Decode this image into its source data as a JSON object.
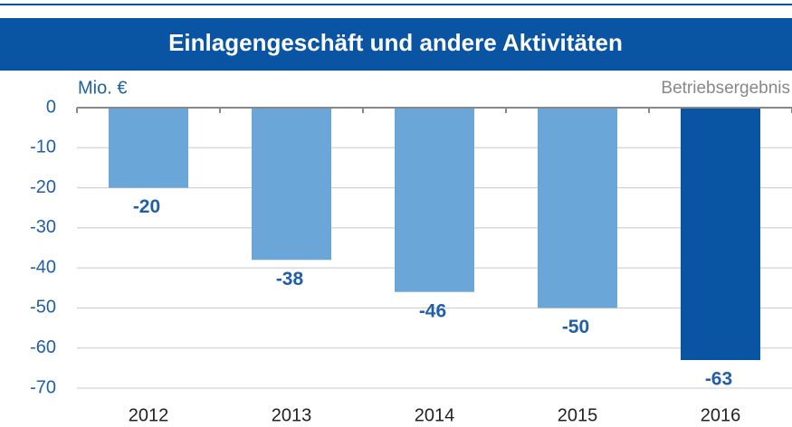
{
  "chart_data": {
    "type": "bar",
    "title": "Einlagengeschäft und andere Aktivitäten",
    "unit_label": "Mio. €",
    "annotation": "Betriebsergebnis",
    "categories": [
      "2012",
      "2013",
      "2014",
      "2015",
      "2016"
    ],
    "values": [
      -20,
      -38,
      -46,
      -50,
      -63
    ],
    "colors": [
      "#6aa6d8",
      "#6aa6d8",
      "#6aa6d8",
      "#6aa6d8",
      "#0a55a3"
    ],
    "ylim": [
      -70,
      0
    ],
    "yticks": [
      0,
      -10,
      -20,
      -30,
      -40,
      -50,
      -60,
      -70
    ],
    "grid": true
  }
}
